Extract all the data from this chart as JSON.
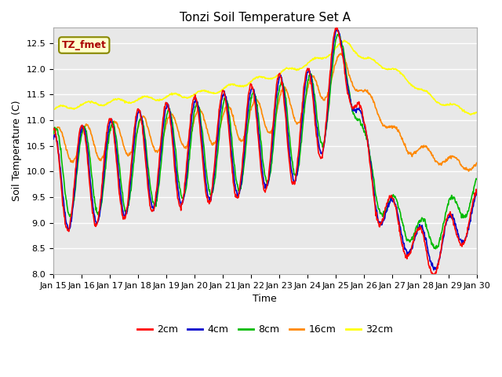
{
  "title": "Tonzi Soil Temperature Set A",
  "xlabel": "Time",
  "ylabel": "Soil Temperature (C)",
  "ylim": [
    8.0,
    12.8
  ],
  "xlim": [
    0,
    15
  ],
  "annotation": "TZ_fmet",
  "annotation_color": "#aa0000",
  "annotation_bg": "#ffffcc",
  "annotation_border": "#888800",
  "series_colors": {
    "2cm": "#ff0000",
    "4cm": "#0000cc",
    "8cm": "#00bb00",
    "16cm": "#ff8800",
    "32cm": "#ffff00"
  },
  "xtick_labels": [
    "Jan 15",
    "Jan 16",
    "Jan 17",
    "Jan 18",
    "Jan 19",
    "Jan 20",
    "Jan 21",
    "Jan 22",
    "Jan 23",
    "Jan 24",
    "Jan 25",
    "Jan 26",
    "Jan 27",
    "Jan 28",
    "Jan 29",
    "Jan 30"
  ],
  "xtick_positions": [
    0,
    1,
    2,
    3,
    4,
    5,
    6,
    7,
    8,
    9,
    10,
    11,
    12,
    13,
    14,
    15
  ],
  "ytick_positions": [
    8.0,
    8.5,
    9.0,
    9.5,
    10.0,
    10.5,
    11.0,
    11.5,
    12.0,
    12.5
  ],
  "line_width": 1.2
}
